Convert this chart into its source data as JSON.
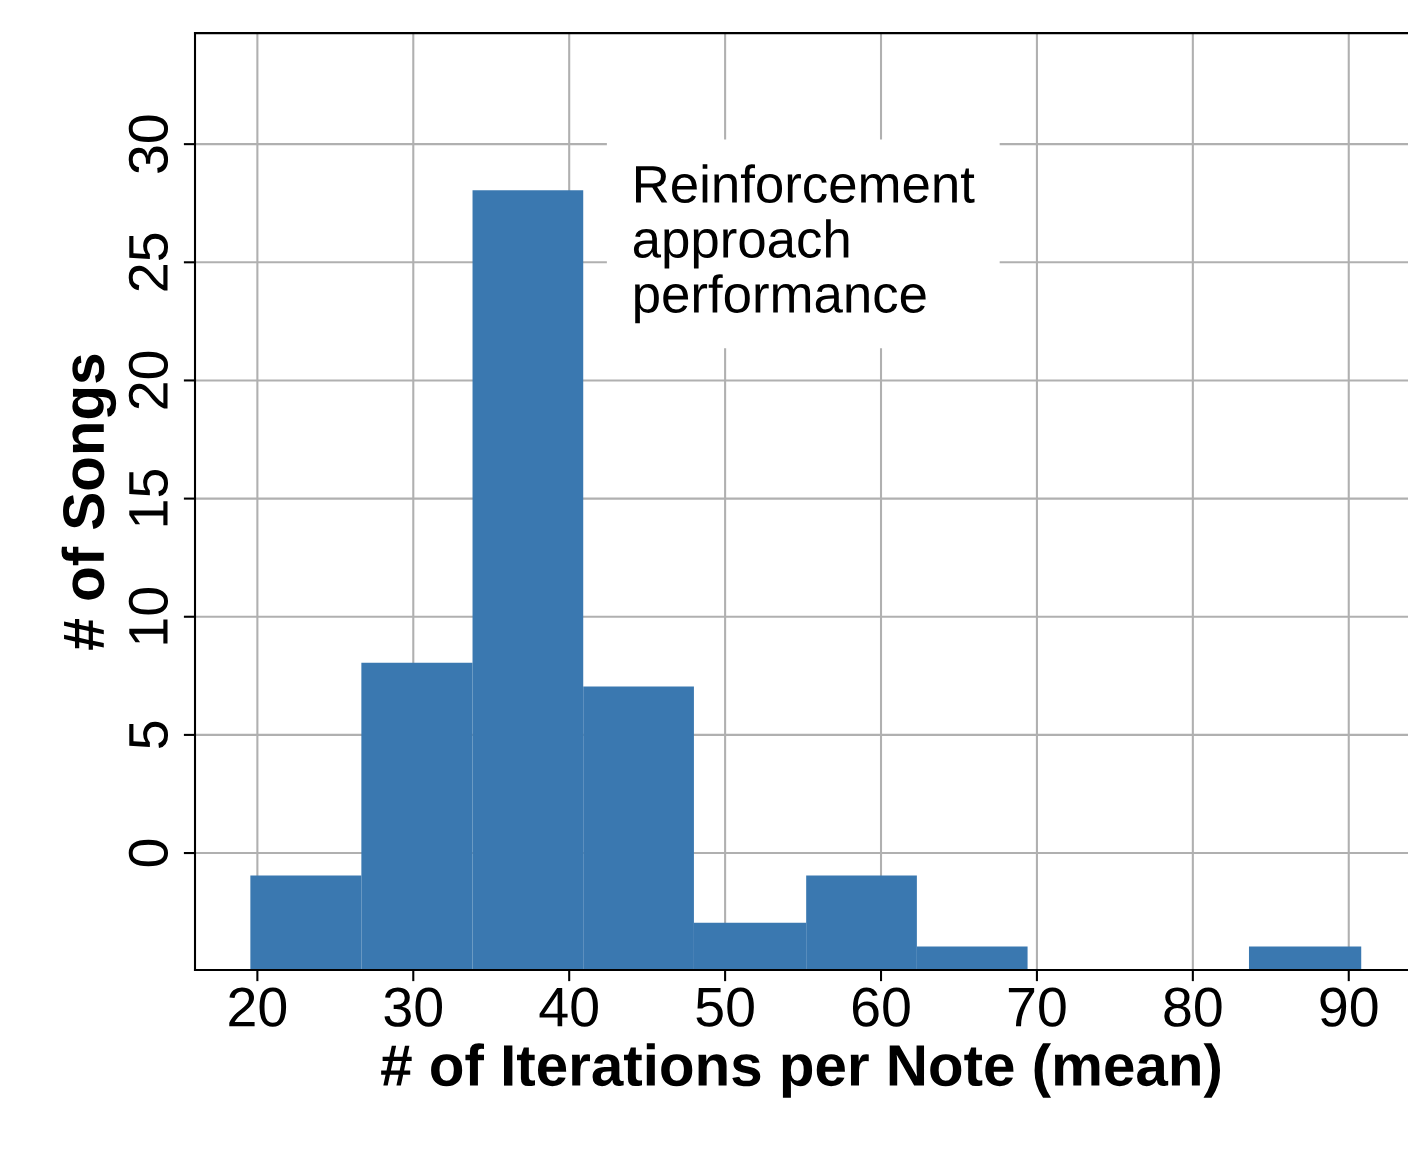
{
  "chart_data": {
    "type": "histogram",
    "xlabel": "# of Iterations per Note (mean)",
    "ylabel": "# of Songs",
    "bins": [
      19.55,
      26.67,
      33.8,
      40.9,
      48.0,
      55.2,
      62.3,
      69.4,
      83.6,
      90.8
    ],
    "values": [
      4,
      13,
      33,
      12,
      2,
      4,
      1,
      0,
      1
    ],
    "base": [
      -4.95,
      -4.95,
      -4.95,
      -4.95,
      -4.95,
      -4.95,
      -4.95,
      null,
      -4.95
    ],
    "color": "#3a78b0",
    "xlim": [
      16,
      93.8
    ],
    "xticks": [
      20,
      30,
      40,
      50,
      60,
      70,
      80,
      90
    ],
    "ylim": [
      -4.95,
      34.7
    ],
    "yticks": [
      0,
      5,
      10,
      15,
      20,
      25,
      30
    ],
    "grid": true,
    "annotations": [
      "Reinforcement\napproach\nperformance"
    ]
  }
}
